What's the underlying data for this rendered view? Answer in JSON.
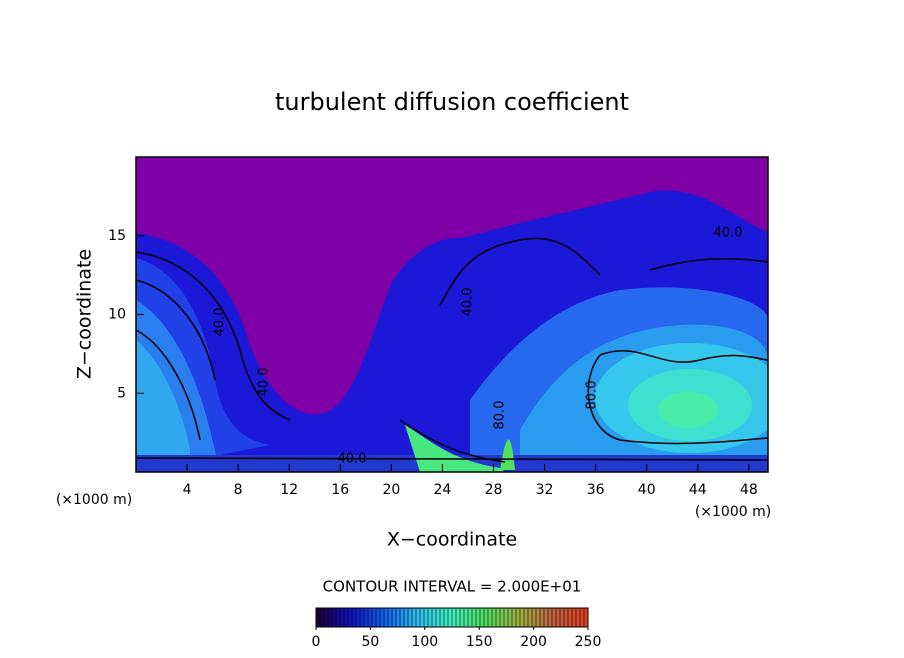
{
  "chart_data": {
    "type": "contour",
    "title": "turbulent diffusion coefficient",
    "x_label": "X−coordinate",
    "y_label": "Z−coordinate",
    "x_unit": "(×1000 m)",
    "y_unit": "(×1000 m)",
    "xlim": [
      0,
      49.5
    ],
    "xticks": [
      4,
      8,
      12,
      16,
      20,
      24,
      28,
      32,
      36,
      40,
      44,
      48
    ],
    "ylim": [
      0,
      20
    ],
    "yticks": [
      5,
      10,
      15
    ],
    "contour_interval_label": "CONTOUR INTERVAL = 2.000E+01",
    "contour_labels": [
      "40.0",
      "80.0",
      "40.0",
      "40.0",
      "40.0",
      "40.0",
      "80.0"
    ],
    "colorbar": {
      "lim": [
        0,
        250
      ],
      "ticks": [
        0,
        50,
        100,
        150,
        200,
        250
      ],
      "colors": [
        "#1a0033",
        "#1010c0",
        "#1060f0",
        "#30c0f0",
        "#40f0c0",
        "#50e060",
        "#a0b040",
        "#c06040",
        "#e04020"
      ]
    }
  }
}
